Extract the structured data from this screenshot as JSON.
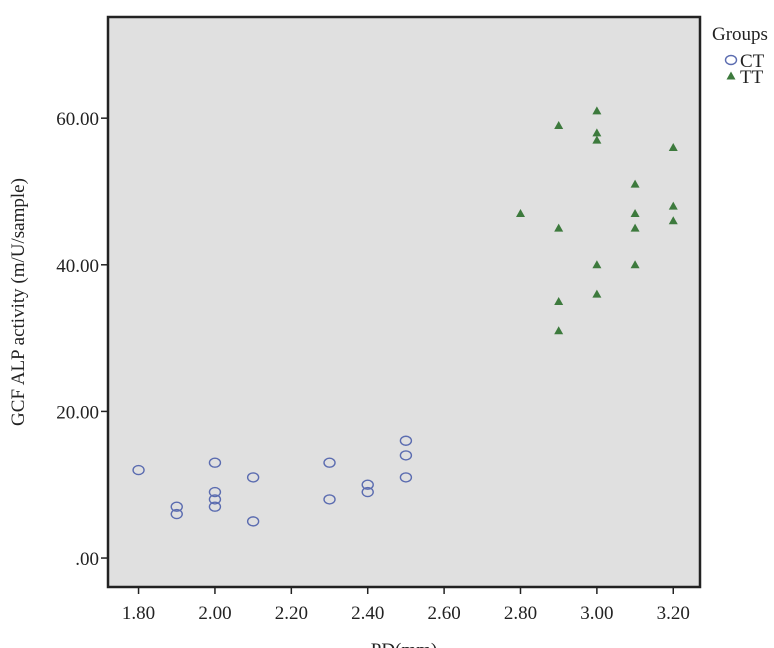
{
  "chart_data": {
    "type": "scatter",
    "x_label": "PD(mm)",
    "y_label": "GCF ALP activity (m/U/sample)",
    "legend_title": "Groups",
    "legend": "right",
    "xlim": [
      1.72,
      3.27
    ],
    "ylim": [
      -3.95,
      73.8
    ],
    "xticks": [
      {
        "value": 1.8,
        "label": "1.80"
      },
      {
        "value": 2.0,
        "label": "2.00"
      },
      {
        "value": 2.2,
        "label": "2.20"
      },
      {
        "value": 2.4,
        "label": "2.40"
      },
      {
        "value": 2.6,
        "label": "2.60"
      },
      {
        "value": 2.8,
        "label": "2.80"
      },
      {
        "value": 3.0,
        "label": "3.00"
      },
      {
        "value": 3.2,
        "label": "3.20"
      }
    ],
    "yticks": [
      {
        "value": 0,
        "label": ".00"
      },
      {
        "value": 20,
        "label": "20.00"
      },
      {
        "value": 40,
        "label": "40.00"
      },
      {
        "value": 60,
        "label": "60.00"
      }
    ],
    "series": [
      {
        "name": "CT",
        "color": "#5b6cb0",
        "marker": "circle",
        "x": [
          1.8,
          1.9,
          1.9,
          2.0,
          2.0,
          2.0,
          2.0,
          2.1,
          2.1,
          2.3,
          2.3,
          2.4,
          2.4,
          2.5,
          2.5,
          2.5
        ],
        "values": [
          12,
          7,
          6,
          13,
          9,
          8,
          7,
          11,
          5,
          13,
          8,
          10,
          9,
          16,
          14,
          11
        ]
      },
      {
        "name": "TT",
        "color": "#3d7a3d",
        "marker": "triangle",
        "x": [
          2.8,
          2.9,
          2.9,
          2.9,
          2.9,
          3.0,
          3.0,
          3.0,
          3.0,
          3.0,
          3.1,
          3.1,
          3.1,
          3.1,
          3.2,
          3.2,
          3.2
        ],
        "values": [
          47,
          59,
          45,
          35,
          31,
          61,
          58,
          57,
          40,
          36,
          51,
          47,
          45,
          40,
          56,
          48,
          46
        ]
      }
    ]
  }
}
